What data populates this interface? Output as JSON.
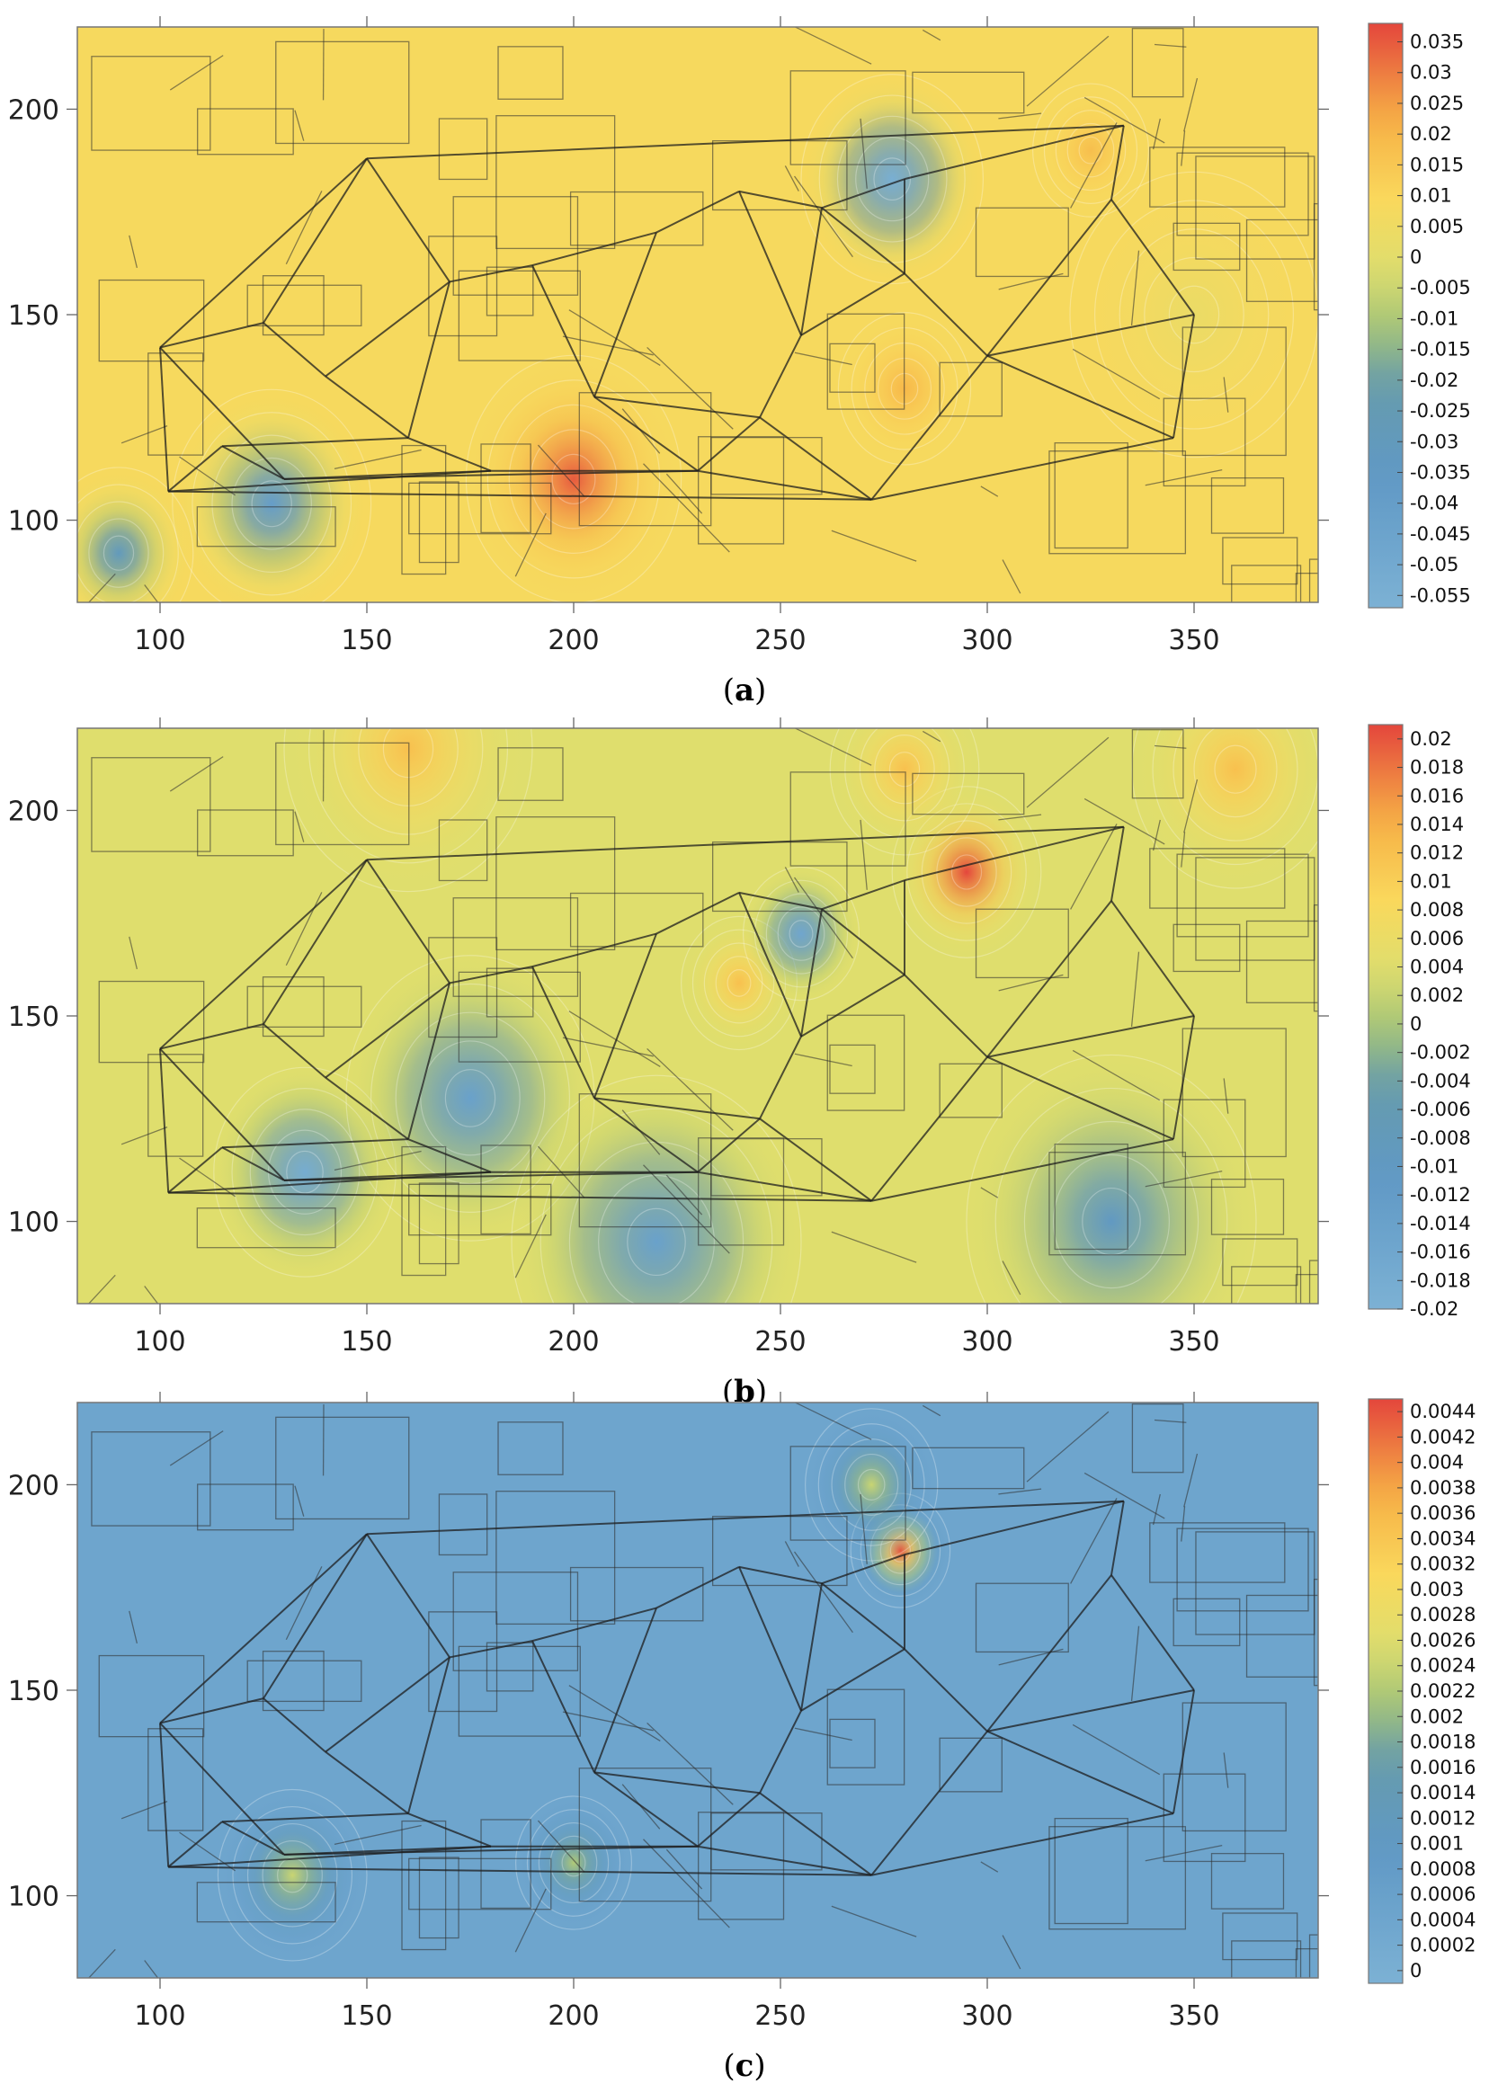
{
  "chart_data": [
    {
      "type": "heatmap",
      "panel_label": "a",
      "xlim": [
        80,
        380
      ],
      "ylim": [
        80,
        220
      ],
      "x_ticks": [
        100,
        150,
        200,
        250,
        300,
        350
      ],
      "y_ticks": [
        100,
        150,
        200
      ],
      "colorbar": {
        "min": -0.057,
        "max": 0.038,
        "labels": [
          "0.035",
          "0.03",
          "0.025",
          "0.02",
          "0.015",
          "0.01",
          "0.005",
          "0",
          "-0.005",
          "-0.01",
          "-0.015",
          "-0.02",
          "-0.025",
          "-0.03",
          "-0.035",
          "-0.04",
          "-0.045",
          "-0.05",
          "-0.055"
        ]
      },
      "background_value": 0.008,
      "hotspots": [
        {
          "x": 200,
          "y": 110,
          "value": 0.035,
          "radius": 26
        },
        {
          "x": 127,
          "y": 104,
          "value": -0.04,
          "radius": 24
        },
        {
          "x": 90,
          "y": 92,
          "value": -0.03,
          "radius": 18
        },
        {
          "x": 277,
          "y": 183,
          "value": -0.055,
          "radius": 22
        },
        {
          "x": 325,
          "y": 190,
          "value": 0.018,
          "radius": 14
        },
        {
          "x": 280,
          "y": 132,
          "value": 0.02,
          "radius": 16
        },
        {
          "x": 350,
          "y": 150,
          "value": 0.003,
          "radius": 30
        }
      ]
    },
    {
      "type": "heatmap",
      "panel_label": "b",
      "xlim": [
        80,
        380
      ],
      "ylim": [
        80,
        220
      ],
      "x_ticks": [
        100,
        150,
        200,
        250,
        300,
        350
      ],
      "y_ticks": [
        100,
        150,
        200
      ],
      "colorbar": {
        "min": -0.02,
        "max": 0.021,
        "labels": [
          "0.02",
          "0.018",
          "0.016",
          "0.014",
          "0.012",
          "0.01",
          "0.008",
          "0.006",
          "0.004",
          "0.002",
          "0",
          "-0.002",
          "-0.004",
          "-0.006",
          "-0.008",
          "-0.01",
          "-0.012",
          "-0.014",
          "-0.016",
          "-0.018",
          "-0.02"
        ]
      },
      "background_value": 0.004,
      "hotspots": [
        {
          "x": 295,
          "y": 185,
          "value": 0.021,
          "radius": 18
        },
        {
          "x": 280,
          "y": 210,
          "value": 0.012,
          "radius": 18
        },
        {
          "x": 240,
          "y": 158,
          "value": 0.012,
          "radius": 14
        },
        {
          "x": 255,
          "y": 170,
          "value": -0.016,
          "radius": 14
        },
        {
          "x": 135,
          "y": 112,
          "value": -0.018,
          "radius": 22
        },
        {
          "x": 175,
          "y": 130,
          "value": -0.014,
          "radius": 30
        },
        {
          "x": 220,
          "y": 95,
          "value": -0.014,
          "radius": 35
        },
        {
          "x": 330,
          "y": 100,
          "value": -0.01,
          "radius": 35
        },
        {
          "x": 160,
          "y": 215,
          "value": 0.012,
          "radius": 30
        },
        {
          "x": 360,
          "y": 210,
          "value": 0.012,
          "radius": 25
        }
      ]
    },
    {
      "type": "heatmap",
      "panel_label": "c",
      "xlim": [
        80,
        380
      ],
      "ylim": [
        80,
        220
      ],
      "x_ticks": [
        100,
        150,
        200,
        250,
        300,
        350
      ],
      "y_ticks": [
        100,
        150,
        200
      ],
      "colorbar": {
        "min": -0.0001,
        "max": 0.0045,
        "labels": [
          "0.0044",
          "0.0042",
          "0.004",
          "0.0038",
          "0.0036",
          "0.0034",
          "0.0032",
          "0.003",
          "0.0028",
          "0.0026",
          "0.0024",
          "0.0022",
          "0.002",
          "0.0018",
          "0.0016",
          "0.0014",
          "0.0012",
          "0.001",
          "0.0008",
          "0.0006",
          "0.0004",
          "0.0002",
          "0"
        ]
      },
      "background_value": 0.0004,
      "hotspots": [
        {
          "x": 279,
          "y": 184,
          "value": 0.0044,
          "radius": 12
        },
        {
          "x": 272,
          "y": 200,
          "value": 0.0024,
          "radius": 16
        },
        {
          "x": 132,
          "y": 105,
          "value": 0.0024,
          "radius": 18
        },
        {
          "x": 200,
          "y": 108,
          "value": 0.0022,
          "radius": 14
        }
      ]
    }
  ]
}
